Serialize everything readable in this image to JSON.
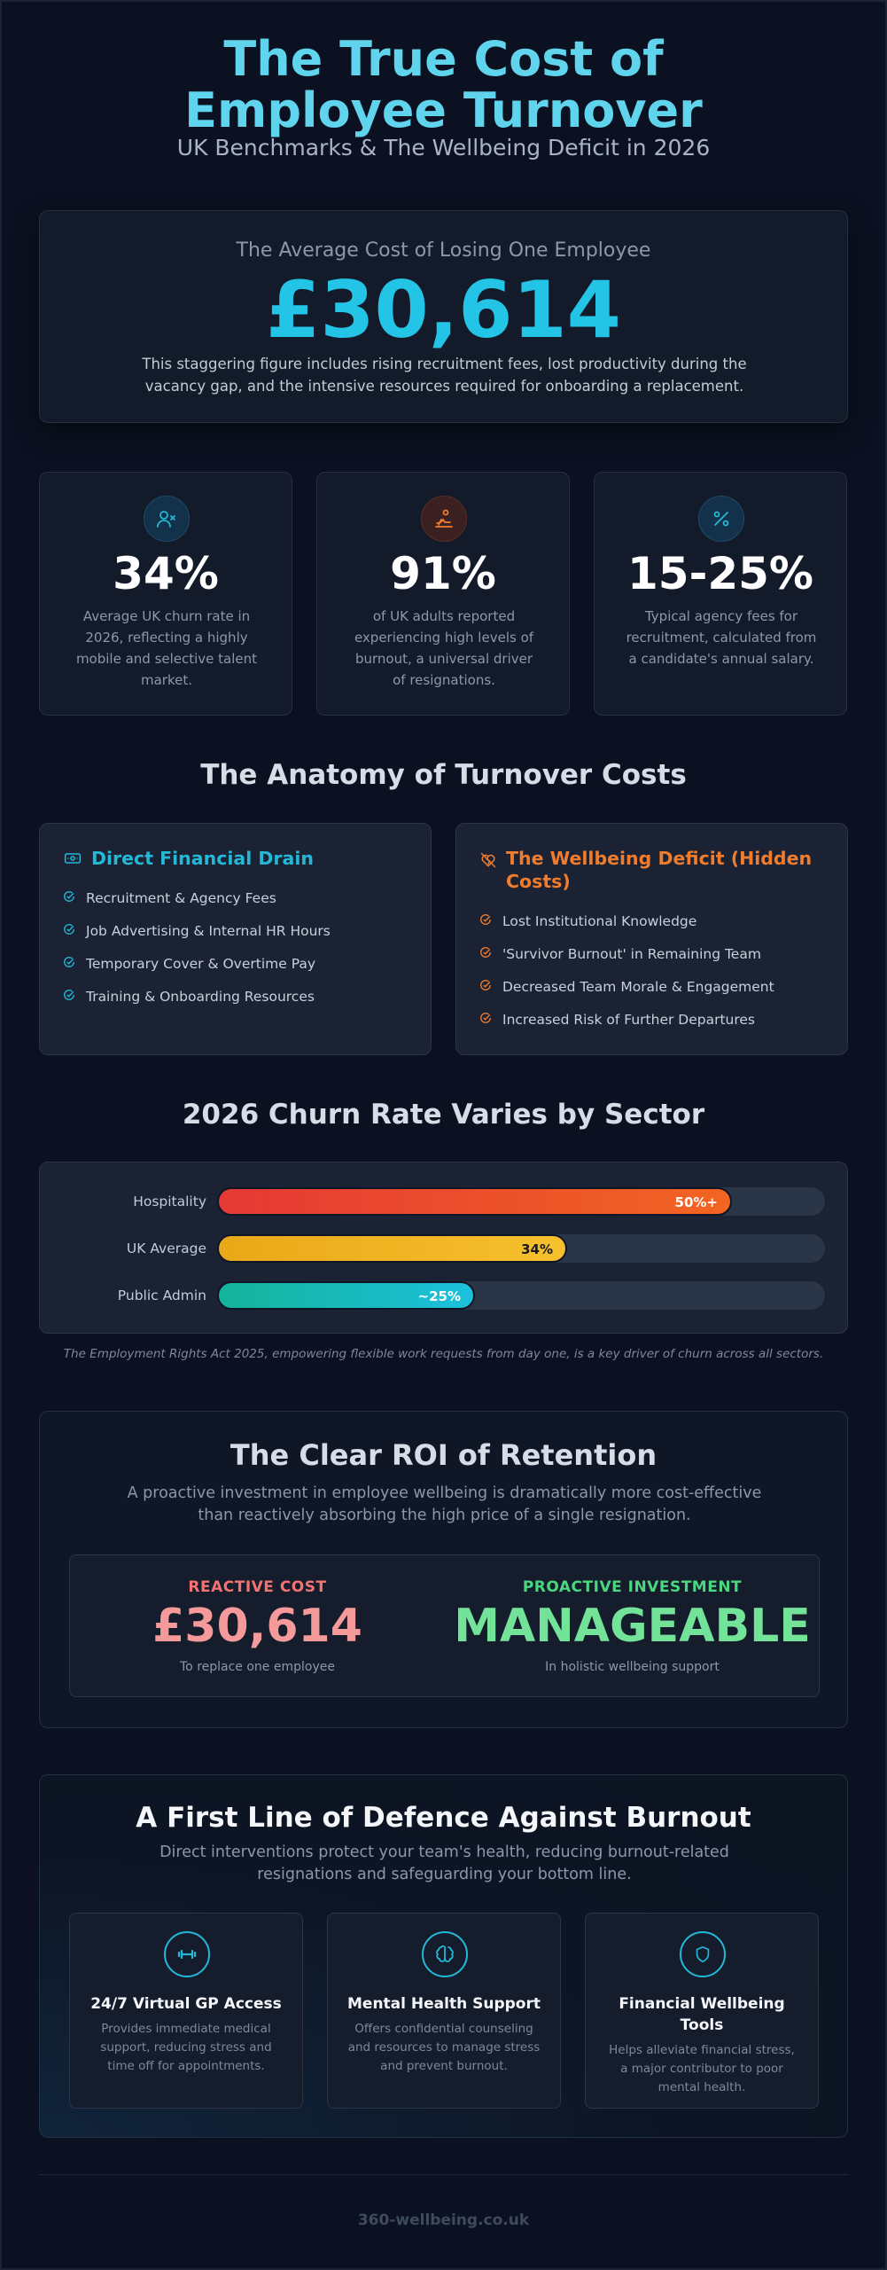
{
  "header": {
    "title": "The True Cost of Employee Turnover",
    "subtitle": "UK Benchmarks & The Wellbeing Deficit in 2026"
  },
  "hero": {
    "label": "The Average Cost of Losing One Employee",
    "value": "£30,614",
    "description": "This staggering figure includes rising recruitment fees, lost productivity during the vacancy gap, and the intensive resources required for onboarding a replacement."
  },
  "stats": [
    {
      "icon": "user-remove-icon",
      "value": "34%",
      "description": "Average UK churn rate in 2026, reflecting a highly mobile and selective talent market.",
      "accent": "#22b8d6"
    },
    {
      "icon": "burnout-icon",
      "value": "91%",
      "description": "of UK adults reported experiencing high levels of burnout, a universal driver of resignations.",
      "accent": "#f07c2e"
    },
    {
      "icon": "percent-icon",
      "value": "15-25%",
      "description": "Typical agency fees for recruitment, calculated from a candidate's annual salary.",
      "accent": "#22b8d6"
    }
  ],
  "anatomy": {
    "heading": "The Anatomy of Turnover Costs",
    "direct": {
      "title": "Direct Financial Drain",
      "icon": "banknote-icon",
      "color": "#22b8d6",
      "items": [
        "Recruitment & Agency Fees",
        "Job Advertising & Internal HR Hours",
        "Temporary Cover & Overtime Pay",
        "Training & Onboarding Resources"
      ]
    },
    "hidden": {
      "title": "The Wellbeing Deficit (Hidden Costs)",
      "icon": "broken-heart-icon",
      "color": "#f07c2e",
      "items": [
        "Lost Institutional Knowledge",
        "'Survivor Burnout' in Remaining Team",
        "Decreased Team Morale & Engagement",
        "Increased Risk of Further Departures"
      ]
    }
  },
  "churn": {
    "heading": "2026 Churn Rate Varies by Sector",
    "note": "The Employment Rights Act 2025, empowering flexible work requests from day one, is a key driver of churn across all sectors."
  },
  "chart_data": {
    "type": "bar",
    "orientation": "horizontal",
    "categories": [
      "Hospitality",
      "UK Average",
      "Public Admin"
    ],
    "values": [
      50,
      34,
      25
    ],
    "labels": [
      "50%+",
      "34%",
      "~25%"
    ],
    "xlim": [
      0,
      59
    ],
    "colors": [
      [
        "#e53935",
        "#f26522"
      ],
      [
        "#e9a818",
        "#f7c02e"
      ],
      [
        "#14b39a",
        "#1cc0dc"
      ]
    ],
    "label_colors": [
      "#ffffff",
      "#1b1b1b",
      "#ffffff"
    ]
  },
  "roi": {
    "title": "The Clear ROI of Retention",
    "description": "A proactive investment in employee wellbeing is dramatically more cost-effective than reactively absorbing the high price of a single resignation.",
    "reactive": {
      "kicker": "REACTIVE COST",
      "value": "£30,614",
      "sub": "To replace one employee",
      "color": "#f49a9a",
      "kicker_color": "#f47272"
    },
    "proactive": {
      "kicker": "PROACTIVE INVESTMENT",
      "value": "MANAGEABLE",
      "sub": "In holistic wellbeing support",
      "color": "#74e39a",
      "kicker_color": "#4bd680"
    }
  },
  "defence": {
    "title": "A First Line of Defence Against Burnout",
    "description": "Direct interventions protect your team's health, reducing burnout-related resignations and safeguarding your bottom line.",
    "cards": [
      {
        "icon": "stethoscope-icon",
        "title": "24/7 Virtual GP Access",
        "description": "Provides immediate medical support, reducing stress and time off for appointments."
      },
      {
        "icon": "brain-icon",
        "title": "Mental Health Support",
        "description": "Offers confidential counseling and resources to manage stress and prevent burnout."
      },
      {
        "icon": "shield-icon",
        "title": "Financial Wellbeing Tools",
        "description": "Helps alleviate financial stress, a major contributor to poor mental health."
      }
    ]
  },
  "footer": {
    "text": "360-wellbeing.co.uk"
  }
}
